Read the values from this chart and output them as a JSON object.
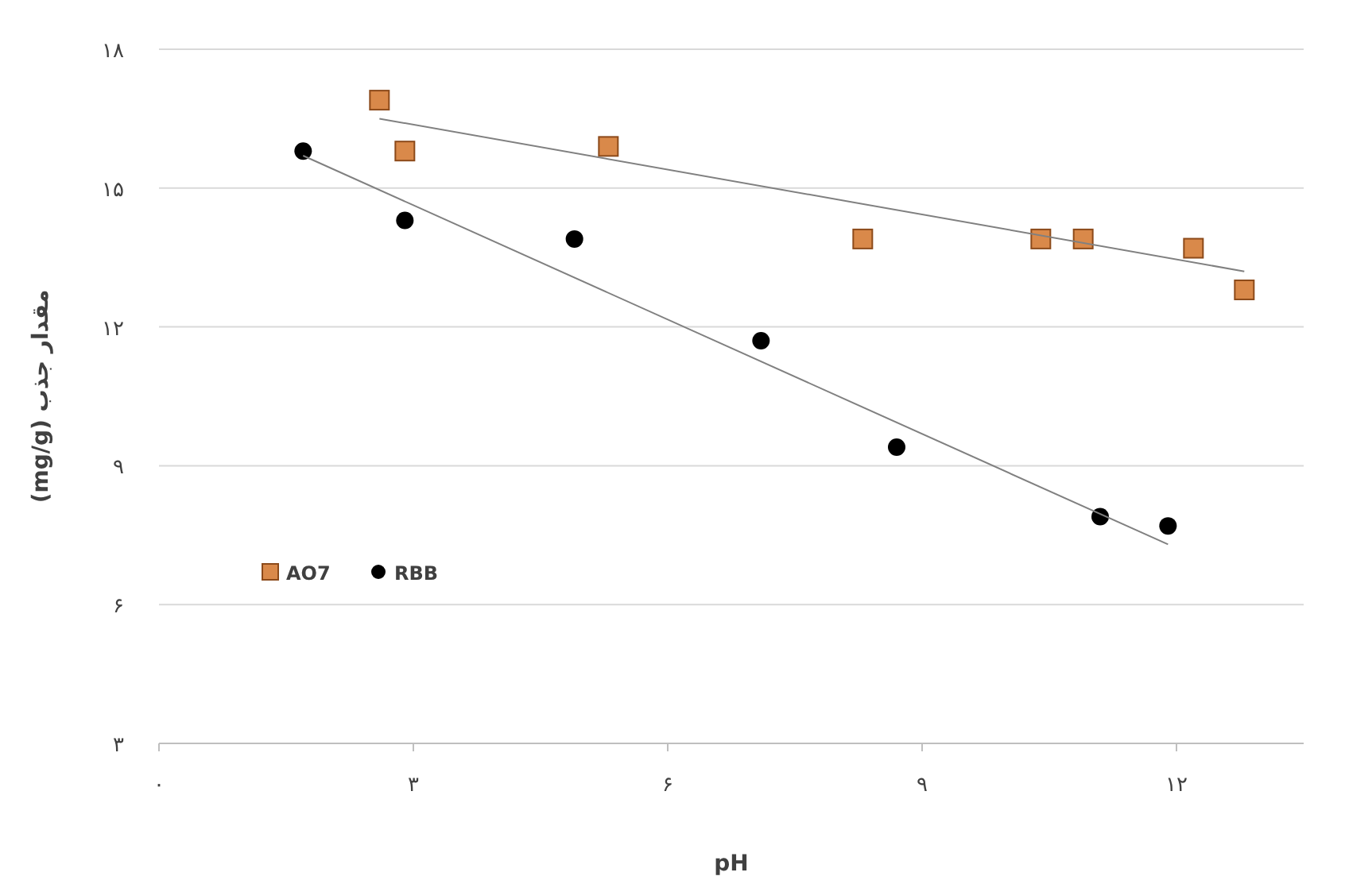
{
  "chart_data": {
    "type": "scatter",
    "xlabel": "pH",
    "ylabel": "مقدار جذب (mg/g)",
    "xlim": [
      0,
      13.5
    ],
    "xticks": [
      {
        "value": 0,
        "label": "۰"
      },
      {
        "value": 3,
        "label": "۳"
      },
      {
        "value": 6,
        "label": "۶"
      },
      {
        "value": 9,
        "label": "۹"
      },
      {
        "value": 12,
        "label": "۱۲"
      }
    ],
    "ylim": [
      3,
      18
    ],
    "yticks": [
      {
        "value": 3,
        "label": "۳"
      },
      {
        "value": 6,
        "label": "۶"
      },
      {
        "value": 9,
        "label": "۹"
      },
      {
        "value": 12,
        "label": "۱۲"
      },
      {
        "value": 15,
        "label": "۱۵"
      },
      {
        "value": 18,
        "label": "۱۸"
      }
    ],
    "grid": "y",
    "legend": "left",
    "series": [
      {
        "name": "AO7",
        "marker": "square",
        "color": "#d9894a",
        "x": [
          2.6,
          2.9,
          5.3,
          8.3,
          10.4,
          10.9,
          12.2,
          12.8
        ],
        "values": [
          16.9,
          15.8,
          15.9,
          13.9,
          13.9,
          13.9,
          13.7,
          12.8
        ]
      },
      {
        "name": "RBB",
        "marker": "circle",
        "color": "#000000",
        "x": [
          1.7,
          2.9,
          4.9,
          7.1,
          8.7,
          11.1,
          11.9
        ],
        "values": [
          15.8,
          14.3,
          13.9,
          11.7,
          9.4,
          7.9,
          7.7
        ]
      },
      {
        "type": "line",
        "color": "#808080",
        "x": [
          2.6,
          12.8
        ],
        "values": [
          16.5,
          13.2
        ]
      },
      {
        "type": "line",
        "color": "#808080",
        "x": [
          1.7,
          11.9
        ],
        "values": [
          15.7,
          7.3
        ]
      }
    ]
  }
}
